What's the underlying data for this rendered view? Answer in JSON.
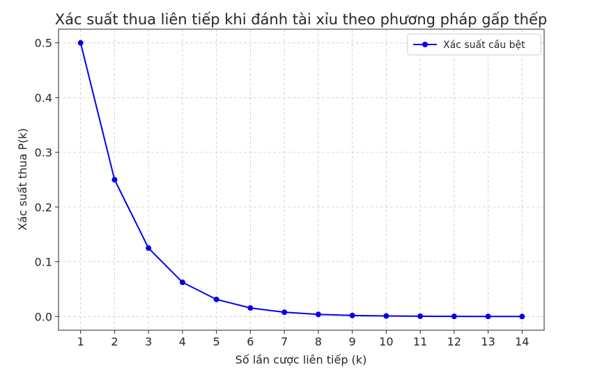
{
  "chart_data": {
    "type": "line",
    "title": "Xác suất thua liên tiếp khi đánh tài xỉu theo phương pháp gấp thếp",
    "xlabel": "Số lần cược liên tiếp (k)",
    "ylabel": "Xác suất thua P(k)",
    "x": [
      1,
      2,
      3,
      4,
      5,
      6,
      7,
      8,
      9,
      10,
      11,
      12,
      13,
      14
    ],
    "xticks": [
      "1",
      "2",
      "3",
      "4",
      "5",
      "6",
      "7",
      "8",
      "9",
      "10",
      "11",
      "12",
      "13",
      "14"
    ],
    "yticks": [
      "0.0",
      "0.1",
      "0.2",
      "0.3",
      "0.4",
      "0.5"
    ],
    "ylim": [
      -0.025,
      0.525
    ],
    "xlim": [
      0.35,
      14.65
    ],
    "grid": true,
    "legend_position": "top-right",
    "series": [
      {
        "name": "Xác suất cầu bệt",
        "color": "#0000ee",
        "marker": "circle",
        "values": [
          0.5,
          0.25,
          0.125,
          0.0625,
          0.03125,
          0.015625,
          0.0078125,
          0.00390625,
          0.001953125,
          0.0009765625,
          0.00048828125,
          0.000244140625,
          0.0001220703125,
          6.103515625e-05
        ]
      }
    ]
  }
}
